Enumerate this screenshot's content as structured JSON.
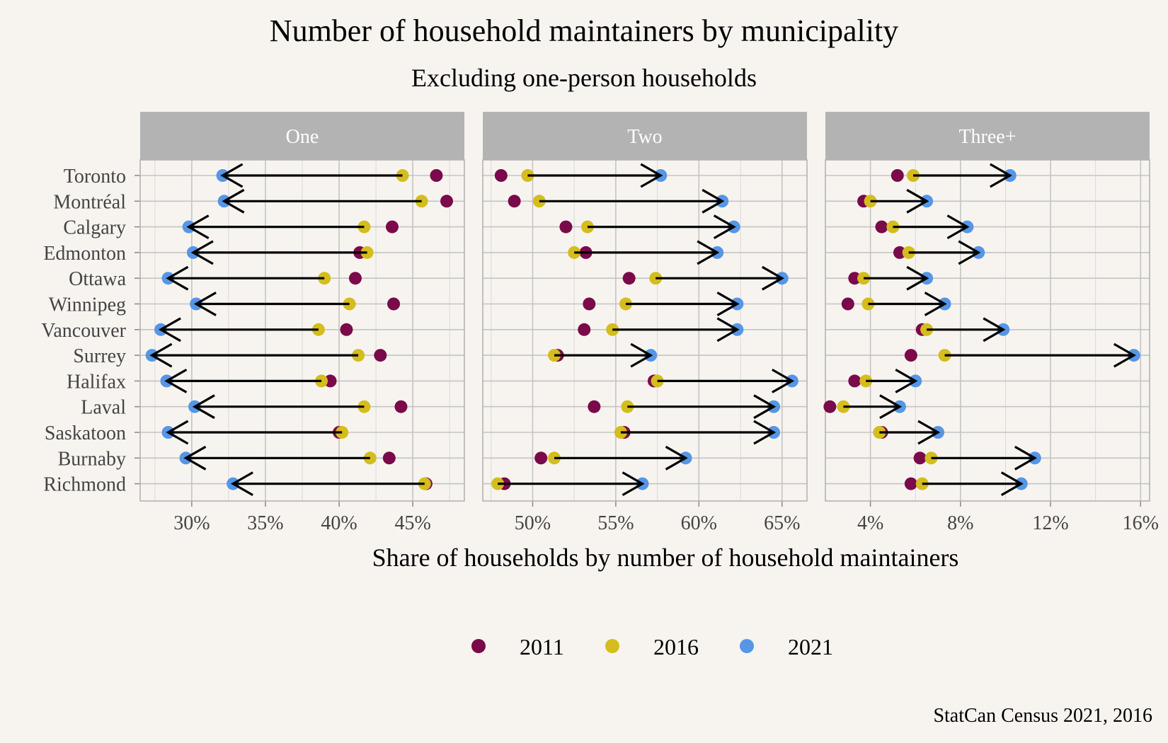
{
  "chart_data": {
    "type": "dumbbell-arrow",
    "title": "Number of household maintainers by municipality",
    "subtitle": "Excluding one-person households",
    "xlabel": "Share of households by number of household maintainers",
    "caption": "StatCan Census 2021, 2016",
    "legend": {
      "placement": "bottom",
      "entries": [
        "2011",
        "2016",
        "2021"
      ]
    },
    "series_colors": {
      "2011": "#7a0a4a",
      "2016": "#d4bd1c",
      "2021": "#5596e6"
    },
    "arrow_from": "2016",
    "arrow_to": "2021",
    "grid": true,
    "cities": [
      "Toronto",
      "Montréal",
      "Calgary",
      "Edmonton",
      "Ottawa",
      "Winnipeg",
      "Vancouver",
      "Surrey",
      "Halifax",
      "Laval",
      "Saskatoon",
      "Burnaby",
      "Richmond"
    ],
    "panels": [
      {
        "label": "One",
        "xlim": [
          26.5,
          48.5
        ],
        "ticks": [
          30,
          35,
          40,
          45
        ],
        "tick_labels": [
          "30%",
          "35%",
          "40%",
          "45%"
        ],
        "values": {
          "2011": [
            46.6,
            47.3,
            43.6,
            41.4,
            41.1,
            43.7,
            40.5,
            42.8,
            39.4,
            44.2,
            40.0,
            43.4,
            45.9
          ],
          "2016": [
            44.3,
            45.6,
            41.7,
            41.9,
            39.0,
            40.7,
            38.6,
            41.3,
            38.8,
            41.7,
            40.2,
            42.1,
            45.8
          ],
          "2021": [
            32.1,
            32.2,
            29.8,
            30.1,
            28.4,
            30.3,
            27.9,
            27.3,
            28.3,
            30.2,
            28.4,
            29.6,
            32.8
          ]
        }
      },
      {
        "label": "Two",
        "xlim": [
          47.0,
          66.5
        ],
        "ticks": [
          50,
          55,
          60,
          65
        ],
        "tick_labels": [
          "50%",
          "55%",
          "60%",
          "65%"
        ],
        "values": {
          "2011": [
            48.1,
            48.9,
            52.0,
            53.2,
            55.8,
            53.4,
            53.1,
            51.5,
            57.3,
            53.7,
            55.5,
            50.5,
            48.3
          ],
          "2016": [
            49.7,
            50.4,
            53.3,
            52.5,
            57.4,
            55.6,
            54.8,
            51.3,
            57.5,
            55.7,
            55.3,
            51.3,
            47.9
          ],
          "2021": [
            57.7,
            61.4,
            62.1,
            61.1,
            65.0,
            62.3,
            62.3,
            57.1,
            65.6,
            64.5,
            64.5,
            59.2,
            56.6
          ]
        }
      },
      {
        "label": "Three+",
        "xlim": [
          2.0,
          16.4
        ],
        "ticks": [
          4,
          8,
          12,
          16
        ],
        "tick_labels": [
          "4%",
          "8%",
          "12%",
          "16%"
        ],
        "values": {
          "2011": [
            5.2,
            3.7,
            4.5,
            5.3,
            3.3,
            3.0,
            6.3,
            5.8,
            3.3,
            2.2,
            4.5,
            6.2,
            5.8
          ],
          "2016": [
            5.9,
            4.0,
            5.0,
            5.7,
            3.7,
            3.9,
            6.5,
            7.3,
            3.8,
            2.8,
            4.4,
            6.7,
            6.3
          ],
          "2021": [
            10.2,
            6.5,
            8.3,
            8.8,
            6.5,
            7.3,
            9.9,
            15.7,
            6.0,
            5.3,
            7.0,
            11.3,
            10.7
          ]
        }
      }
    ]
  }
}
